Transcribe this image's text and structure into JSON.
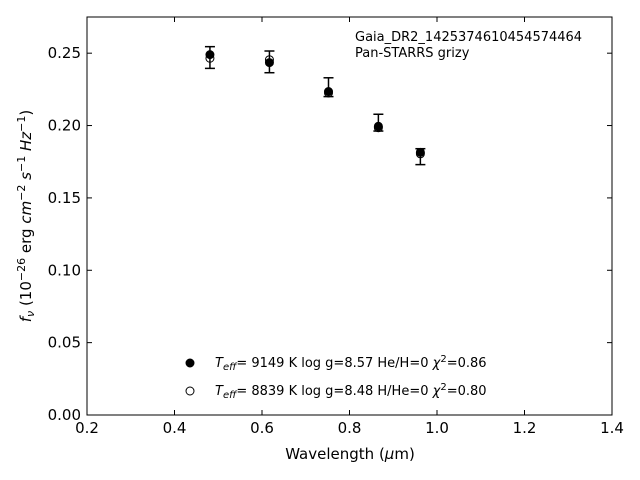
{
  "chart_data": {
    "type": "scatter",
    "xlabel": "Wavelength (μm)",
    "ylabel": "f_ν (10^-26 erg cm^-2 s^-1 Hz^-1)",
    "xlim": [
      0.2,
      1.4
    ],
    "ylim": [
      0.0,
      0.275
    ],
    "xticks": [
      0.2,
      0.4,
      0.6,
      0.8,
      1.0,
      1.2,
      1.4
    ],
    "xtick_labels": [
      "0.2",
      "0.4",
      "0.6",
      "0.8",
      "1.0",
      "1.2",
      "1.4"
    ],
    "yticks": [
      0.0,
      0.05,
      0.1,
      0.15,
      0.2,
      0.25
    ],
    "ytick_labels": [
      "0.00",
      "0.05",
      "0.10",
      "0.15",
      "0.20",
      "0.25"
    ],
    "annotation": {
      "line1": "Gaia_DR2_1425374610454574464",
      "line2": "Pan-STARRS grizy"
    },
    "observed": {
      "x": [
        0.481,
        0.617,
        0.752,
        0.866,
        0.962
      ],
      "y": [
        0.247,
        0.244,
        0.2265,
        0.202,
        0.1785
      ],
      "yerr": [
        0.0075,
        0.0075,
        0.0065,
        0.0058,
        0.0055
      ]
    },
    "series": [
      {
        "marker": "filled",
        "x": [
          0.481,
          0.617,
          0.752,
          0.866,
          0.962
        ],
        "y": [
          0.249,
          0.2435,
          0.2235,
          0.1995,
          0.1815
        ]
      },
      {
        "marker": "open",
        "x": [
          0.481,
          0.617,
          0.752,
          0.866,
          0.962
        ],
        "y": [
          0.2465,
          0.2455,
          0.2225,
          0.1985,
          0.1805
        ]
      }
    ],
    "legend": [
      {
        "marker": "filled",
        "teff_value": "=  9149 K  log g=8.57  He/H=0  ",
        "chi_value": "=0.86"
      },
      {
        "marker": "open",
        "teff_value": "=  8839 K  log g=8.48  H/He=0  ",
        "chi_value": "=0.80"
      }
    ]
  }
}
